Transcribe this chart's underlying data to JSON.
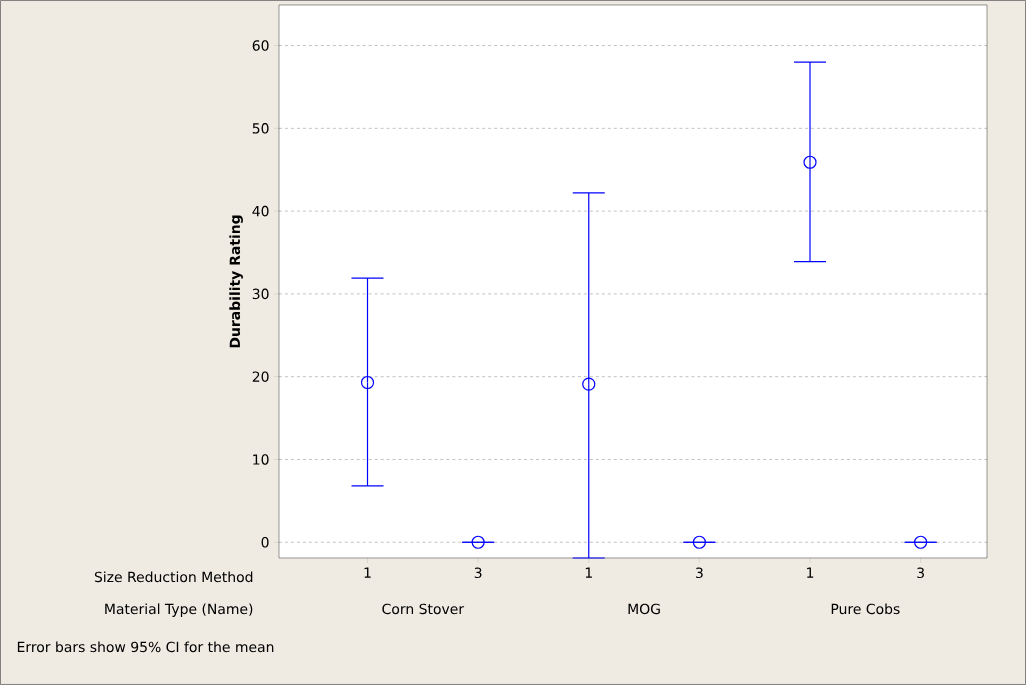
{
  "chart_data": {
    "type": "scatter",
    "ylabel": "Durability Rating",
    "categories": [
      "1",
      "3",
      "1",
      "3",
      "1",
      "3"
    ],
    "values": [
      19.3,
      0,
      19.1,
      0,
      45.9,
      0
    ],
    "errors": [
      [
        6.8,
        31.9
      ],
      [
        0,
        0
      ],
      [
        -1.9,
        42.2
      ],
      [
        0,
        0
      ],
      [
        33.9,
        58.0
      ],
      [
        0,
        0
      ]
    ],
    "color": "#0000ff",
    "marker": "circle",
    "ylim": [
      -1.9,
      64.9
    ],
    "yticks": [
      0,
      10,
      20,
      30,
      40,
      50,
      60
    ],
    "grid": "y",
    "annotations": [
      "Size Reduction Method",
      "Material Type (Name)",
      "Corn Stover",
      "MOG",
      "Pure Cobs",
      "Error bars show 95% CI for the mean"
    ]
  }
}
